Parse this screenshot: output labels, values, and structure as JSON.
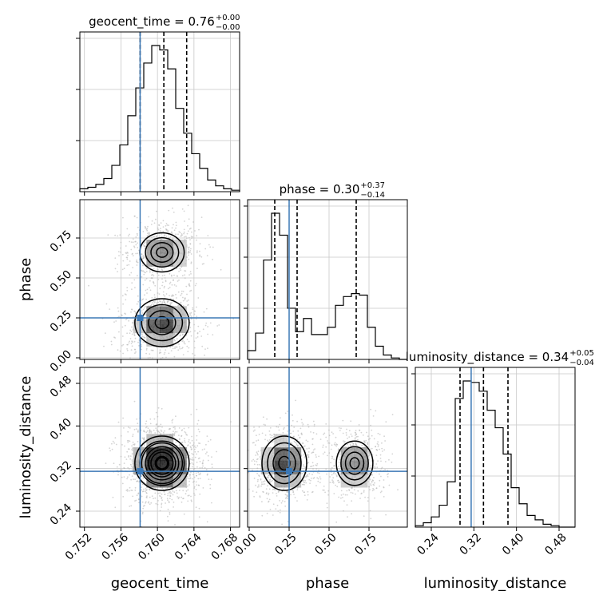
{
  "chart_data": {
    "type": "corner",
    "title": "",
    "colors": {
      "truth": "#3b78b6",
      "line": "#000000",
      "grid": "#c8c8c8",
      "points": "#b0b0b0"
    },
    "params": [
      {
        "name": "geocent_time",
        "label": "geocent_time",
        "range": [
          0.7515,
          0.769
        ],
        "ticks": [
          "0.752",
          "0.756",
          "0.760",
          "0.764",
          "0.768"
        ],
        "tick_values": [
          0.752,
          0.756,
          0.76,
          0.764,
          0.768
        ],
        "truth": 0.7581,
        "title_text": "geocent_time = 0.76",
        "title_sup": "+0.00",
        "title_sub": "−0.00",
        "quantiles": [
          0.7581,
          0.7607,
          0.7632
        ]
      },
      {
        "name": "phase",
        "label": "phase",
        "range": [
          -0.01,
          0.99
        ],
        "ticks": [
          "0.00",
          "0.25",
          "0.50",
          "0.75"
        ],
        "tick_values": [
          0.0,
          0.25,
          0.5,
          0.75
        ],
        "truth": 0.25,
        "title_text": "phase = 0.30",
        "title_sup": "+0.37",
        "title_sub": "−0.14",
        "quantiles": [
          0.16,
          0.3,
          0.67
        ]
      },
      {
        "name": "luminosity_distance",
        "label": "luminosity_distance",
        "range": [
          0.21,
          0.51
        ],
        "ticks": [
          "0.24",
          "0.32",
          "0.40",
          "0.48"
        ],
        "tick_values": [
          0.24,
          0.32,
          0.4,
          0.48
        ],
        "truth": 0.3149,
        "title_text": "luminosity_distance = 0.34",
        "title_sup": "+0.05",
        "title_sub": "−0.04",
        "quantiles": [
          0.294,
          0.338,
          0.384
        ]
      }
    ],
    "hist_geocent_time": {
      "edges_start": 0.7515,
      "bin_width": 0.000875,
      "counts": [
        2,
        3,
        5,
        9,
        18,
        32,
        52,
        71,
        88,
        100,
        97,
        84,
        57,
        40,
        26,
        16,
        8,
        4,
        2,
        1
      ]
    },
    "hist_phase": {
      "edges_start": -0.01,
      "bin_width": 0.05,
      "counts": [
        6,
        18,
        68,
        100,
        85,
        35,
        19,
        28,
        17,
        17,
        22,
        37,
        43,
        45,
        44,
        22,
        9,
        3,
        1,
        0
      ]
    },
    "hist_luminosity_distance": {
      "edges_start": 0.21,
      "bin_width": 0.015,
      "counts": [
        1,
        3,
        7,
        15,
        31,
        88,
        100,
        99,
        93,
        80,
        68,
        50,
        27,
        16,
        8,
        5,
        2,
        1,
        0,
        0
      ]
    },
    "modes": [
      {
        "geocent_time": 0.7605,
        "phase": 0.22,
        "luminosity_distance": 0.33,
        "weight": 0.6
      },
      {
        "geocent_time": 0.7605,
        "phase": 0.66,
        "luminosity_distance": 0.33,
        "weight": 0.4
      }
    ]
  }
}
